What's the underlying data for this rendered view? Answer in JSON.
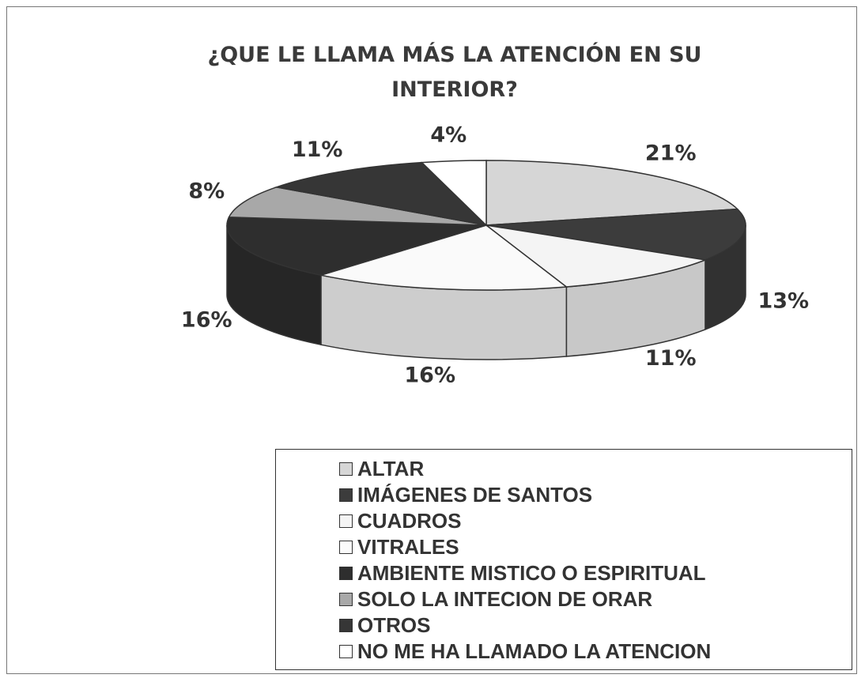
{
  "chart_data": {
    "type": "pie3d",
    "title": "¿QUE LE LLAMA MÁS LA ATENCIÓN EN SU INTERIOR?",
    "categories": [
      "ALTAR",
      "IMÁGENES DE SANTOS",
      "CUADROS",
      "VITRALES",
      "AMBIENTE MISTICO O ESPIRITUAL",
      "SOLO LA INTECION DE ORAR",
      "OTROS",
      "NO ME HA LLAMADO LA ATENCION"
    ],
    "values": [
      21,
      13,
      11,
      16,
      16,
      8,
      11,
      4
    ],
    "value_labels": [
      "21%",
      "13%",
      "11%",
      "16%",
      "16%",
      "8%",
      "11%",
      "4%"
    ],
    "colors": [
      "#d6d6d6",
      "#3c3c3c",
      "#f4f4f4",
      "#fafafa",
      "#2e2e2e",
      "#a8a8a8",
      "#363636",
      "#ffffff"
    ],
    "legend": "bottom"
  }
}
